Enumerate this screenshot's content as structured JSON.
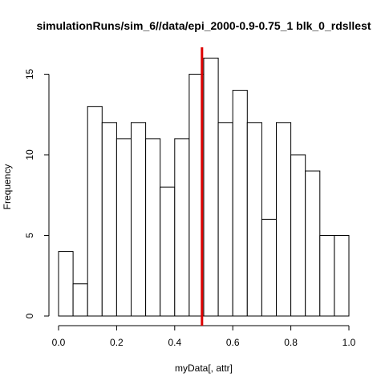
{
  "chart_data": {
    "type": "histogram",
    "title": "simulationRuns/sim_6//data/epi_2000-0.9-0.75_1 blk_0_rdsllest",
    "xlabel": "myData[, attr]",
    "ylabel": "Frequency",
    "bin_width": 0.05,
    "bins": [
      {
        "start": 0.0,
        "end": 0.05,
        "count": 4
      },
      {
        "start": 0.05,
        "end": 0.1,
        "count": 2
      },
      {
        "start": 0.1,
        "end": 0.15,
        "count": 13
      },
      {
        "start": 0.15,
        "end": 0.2,
        "count": 12
      },
      {
        "start": 0.2,
        "end": 0.25,
        "count": 11
      },
      {
        "start": 0.25,
        "end": 0.3,
        "count": 12
      },
      {
        "start": 0.3,
        "end": 0.35,
        "count": 11
      },
      {
        "start": 0.35,
        "end": 0.4,
        "count": 8
      },
      {
        "start": 0.4,
        "end": 0.45,
        "count": 11
      },
      {
        "start": 0.45,
        "end": 0.5,
        "count": 15
      },
      {
        "start": 0.5,
        "end": 0.55,
        "count": 16
      },
      {
        "start": 0.55,
        "end": 0.6,
        "count": 12
      },
      {
        "start": 0.6,
        "end": 0.65,
        "count": 14
      },
      {
        "start": 0.65,
        "end": 0.7,
        "count": 12
      },
      {
        "start": 0.7,
        "end": 0.75,
        "count": 6
      },
      {
        "start": 0.75,
        "end": 0.8,
        "count": 12
      },
      {
        "start": 0.8,
        "end": 0.85,
        "count": 10
      },
      {
        "start": 0.85,
        "end": 0.9,
        "count": 9
      },
      {
        "start": 0.9,
        "end": 0.95,
        "count": 5
      },
      {
        "start": 0.95,
        "end": 1.0,
        "count": 5
      }
    ],
    "xticks": [
      "0.0",
      "0.2",
      "0.4",
      "0.6",
      "0.8",
      "1.0"
    ],
    "yticks": [
      "0",
      "5",
      "10",
      "15"
    ],
    "xlim": [
      0,
      1
    ],
    "ylim": [
      0,
      16
    ],
    "reference_line": {
      "x": 0.494,
      "color": "#dd0000"
    },
    "bar_fill": "#ffffff",
    "bar_stroke": "#000000",
    "grid": false,
    "legend": "none"
  }
}
